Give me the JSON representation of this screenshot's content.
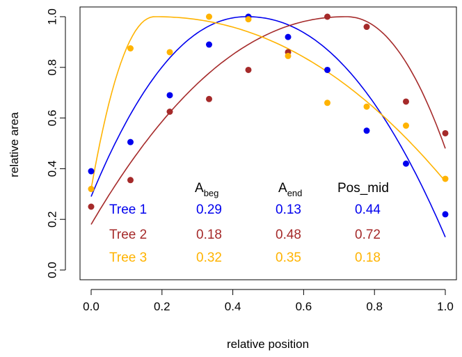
{
  "chart_data": {
    "type": "scatter",
    "xlabel": "relative position",
    "ylabel": "relative area",
    "xlim": [
      0,
      1
    ],
    "ylim": [
      0,
      1
    ],
    "xticks": [
      "0.0",
      "0.2",
      "0.4",
      "0.6",
      "0.8",
      "1.0"
    ],
    "yticks": [
      "0.0",
      "0.2",
      "0.4",
      "0.6",
      "0.8",
      "1.0"
    ],
    "grid": false,
    "series": [
      {
        "name": "Tree 1",
        "color": "#0000ee",
        "x": [
          0,
          0.111,
          0.222,
          0.333,
          0.444,
          0.556,
          0.667,
          0.778,
          0.889,
          1.0
        ],
        "y": [
          0.39,
          0.505,
          0.69,
          0.89,
          1.0,
          0.92,
          0.79,
          0.55,
          0.42,
          0.22
        ],
        "fit": {
          "A_beg": "0.29",
          "A_end": "0.13",
          "Pos_mid": "0.44"
        }
      },
      {
        "name": "Tree 2",
        "color": "#a52a2a",
        "x": [
          0,
          0.111,
          0.222,
          0.333,
          0.444,
          0.556,
          0.667,
          0.778,
          0.889,
          1.0
        ],
        "y": [
          0.25,
          0.355,
          0.625,
          0.675,
          0.79,
          0.86,
          1.0,
          0.96,
          0.665,
          0.54
        ],
        "fit": {
          "A_beg": "0.18",
          "A_end": "0.48",
          "Pos_mid": "0.72"
        }
      },
      {
        "name": "Tree 3",
        "color": "#ffb300",
        "x": [
          0,
          0.111,
          0.222,
          0.333,
          0.444,
          0.556,
          0.667,
          0.778,
          0.889,
          1.0
        ],
        "y": [
          0.32,
          0.875,
          0.86,
          1.0,
          0.99,
          0.845,
          0.66,
          0.645,
          0.57,
          0.36
        ],
        "fit": {
          "A_beg": "0.32",
          "A_end": "0.35",
          "Pos_mid": "0.18"
        }
      }
    ],
    "table": {
      "headers": {
        "a_beg": {
          "base": "A",
          "sub": "beg"
        },
        "a_end": {
          "base": "A",
          "sub": "end"
        },
        "pos_mid": "Pos_mid"
      }
    }
  }
}
